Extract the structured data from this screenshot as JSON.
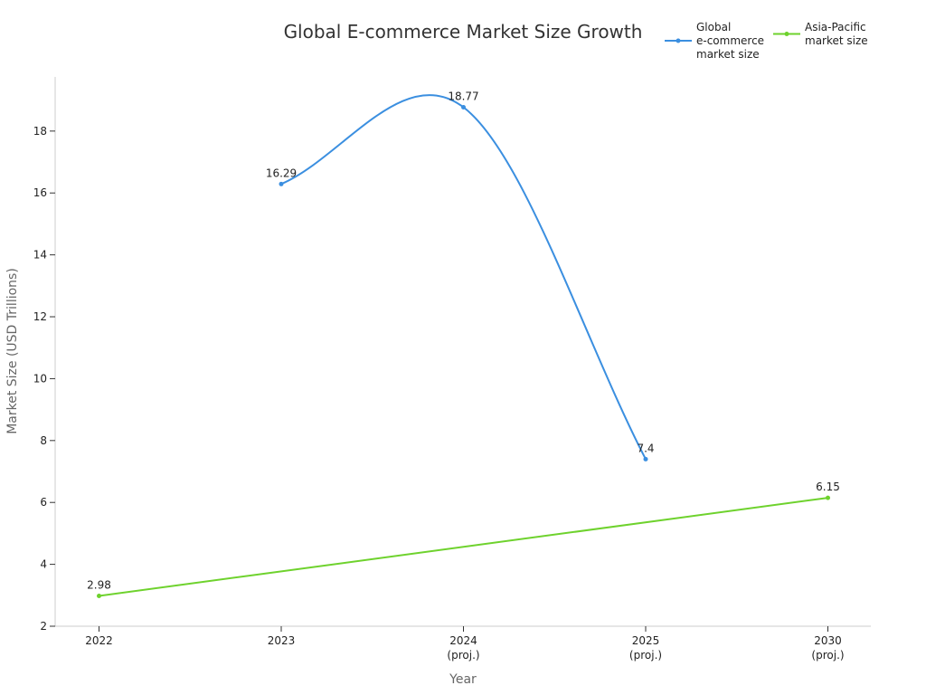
{
  "chart_data": {
    "type": "line",
    "title": "Global E-commerce Market Size Growth",
    "xlabel": "Year",
    "ylabel": "Market Size (USD Trillions)",
    "categories": [
      [
        "2022"
      ],
      [
        "2023"
      ],
      [
        "2024",
        "(proj.)"
      ],
      [
        "2025",
        "(proj.)"
      ],
      [
        "2030",
        "(proj.)"
      ]
    ],
    "ylim": [
      2,
      19.75
    ],
    "yticks": [
      2,
      4,
      6,
      8,
      10,
      12,
      14,
      16,
      18
    ],
    "grid": false,
    "legend_position": "top-right",
    "series": [
      {
        "name": [
          "Global",
          "e-commerce",
          "market size"
        ],
        "color": "#3b8fe0",
        "smooth": true,
        "values": [
          null,
          16.29,
          18.77,
          7.4,
          null
        ],
        "labels": [
          "",
          "16.29",
          "18.77",
          "7.4",
          ""
        ]
      },
      {
        "name": [
          "Asia-Pacific",
          "market size"
        ],
        "color": "#6ed22d",
        "smooth": false,
        "values": [
          2.98,
          null,
          null,
          null,
          6.15
        ],
        "labels": [
          "2.98",
          "",
          "",
          "",
          "6.15"
        ]
      }
    ]
  }
}
